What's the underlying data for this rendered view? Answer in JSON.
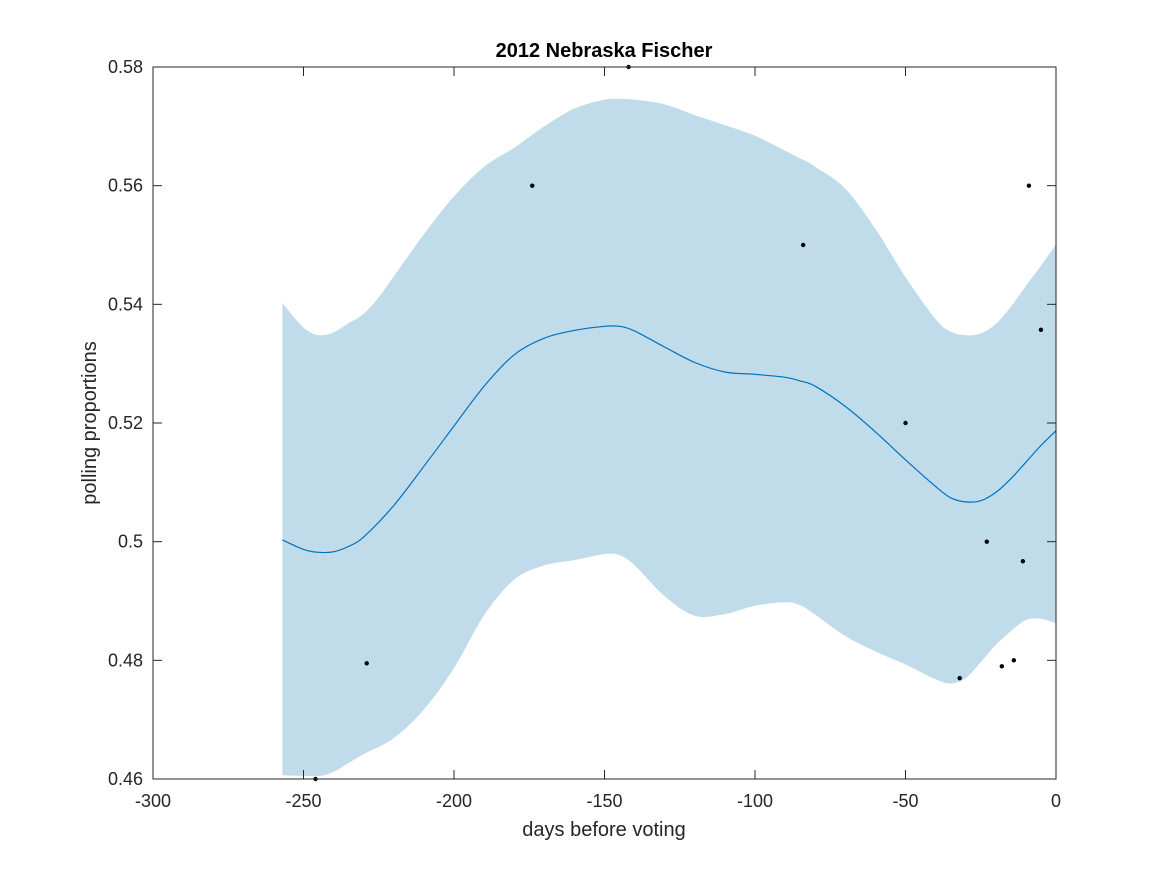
{
  "chart_data": {
    "type": "line",
    "title": "2012 Nebraska Fischer",
    "xlabel": "days before voting",
    "ylabel": "polling proportions",
    "xlim": [
      -300,
      0
    ],
    "ylim": [
      0.46,
      0.58
    ],
    "xticks": [
      -300,
      -250,
      -200,
      -150,
      -100,
      -50,
      0
    ],
    "yticks": [
      0.46,
      0.48,
      0.5,
      0.52,
      0.54,
      0.56,
      0.58
    ],
    "xtick_labels": [
      "-300",
      "-250",
      "-200",
      "-150",
      "-100",
      "-50",
      "0"
    ],
    "ytick_labels": [
      "0.46",
      "0.48",
      "0.5",
      "0.52",
      "0.54",
      "0.56",
      "0.58"
    ],
    "grid": false,
    "colors": {
      "band": "#c0dceb",
      "line": "#0072bd",
      "points": "#000000",
      "axes": "#262626"
    },
    "series": [
      {
        "kind": "mean",
        "x": [
          -257,
          -250,
          -245,
          -240,
          -235,
          -230,
          -220,
          -210,
          -200,
          -190,
          -180,
          -170,
          -160,
          -150,
          -145,
          -140,
          -130,
          -120,
          -110,
          -100,
          -90,
          -85,
          -80,
          -70,
          -60,
          -50,
          -40,
          -35,
          -30,
          -25,
          -20,
          -15,
          -10,
          -5,
          0
        ],
        "y": [
          0.5003,
          0.4987,
          0.4982,
          0.4983,
          0.4992,
          0.5008,
          0.5061,
          0.5127,
          0.5195,
          0.5262,
          0.5315,
          0.5343,
          0.5356,
          0.5363,
          0.5363,
          0.5355,
          0.5328,
          0.5302,
          0.5286,
          0.5282,
          0.5277,
          0.5271,
          0.5262,
          0.5228,
          0.5185,
          0.5138,
          0.5093,
          0.5074,
          0.5067,
          0.5069,
          0.5083,
          0.5106,
          0.5134,
          0.5162,
          0.5187
        ]
      },
      {
        "kind": "upper",
        "x": [
          -257,
          -250,
          -245,
          -240,
          -235,
          -230,
          -225,
          -220,
          -210,
          -200,
          -190,
          -180,
          -170,
          -160,
          -150,
          -145,
          -140,
          -130,
          -120,
          -110,
          -100,
          -90,
          -85,
          -80,
          -70,
          -60,
          -50,
          -40,
          -35,
          -30,
          -25,
          -20,
          -15,
          -10,
          -5,
          0
        ],
        "y": [
          0.5402,
          0.5361,
          0.5348,
          0.5353,
          0.5368,
          0.5384,
          0.5412,
          0.5447,
          0.5518,
          0.5582,
          0.5632,
          0.5664,
          0.57,
          0.573,
          0.5745,
          0.5746,
          0.5745,
          0.5737,
          0.5719,
          0.5702,
          0.5684,
          0.5659,
          0.5646,
          0.5632,
          0.5595,
          0.5527,
          0.5446,
          0.5375,
          0.5354,
          0.5348,
          0.5351,
          0.5367,
          0.5396,
          0.5431,
          0.5465,
          0.5501
        ]
      },
      {
        "kind": "lower",
        "x": [
          -257,
          -245,
          -240,
          -235,
          -230,
          -220,
          -210,
          -200,
          -190,
          -180,
          -170,
          -160,
          -150,
          -145,
          -140,
          -130,
          -120,
          -110,
          -100,
          -90,
          -85,
          -80,
          -70,
          -60,
          -50,
          -40,
          -35,
          -30,
          -25,
          -20,
          -15,
          -10,
          -5,
          0
        ],
        "y": [
          0.4606,
          0.4605,
          0.4612,
          0.4627,
          0.4642,
          0.4669,
          0.4717,
          0.4787,
          0.4876,
          0.4936,
          0.496,
          0.4969,
          0.4979,
          0.4977,
          0.496,
          0.4908,
          0.4875,
          0.4878,
          0.4892,
          0.4898,
          0.4893,
          0.4877,
          0.4841,
          0.4815,
          0.4793,
          0.4768,
          0.4761,
          0.477,
          0.4797,
          0.4826,
          0.4849,
          0.4868,
          0.487,
          0.4862
        ]
      },
      {
        "kind": "polls",
        "x": [
          -246,
          -229,
          -174,
          -142,
          -84,
          -50,
          -32,
          -23,
          -18,
          -14,
          -11,
          -9,
          -5
        ],
        "y": [
          0.46,
          0.4795,
          0.56,
          0.58,
          0.55,
          0.52,
          0.477,
          0.5,
          0.479,
          0.48,
          0.4967,
          0.56,
          0.5357
        ]
      }
    ]
  }
}
